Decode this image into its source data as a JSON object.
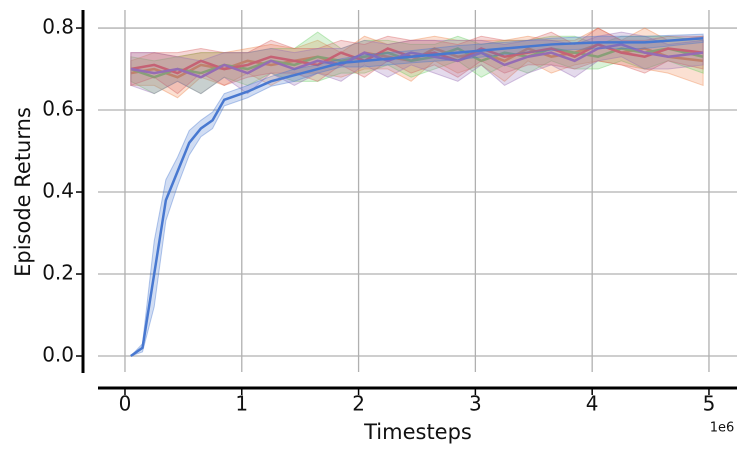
{
  "chart_data": {
    "type": "line",
    "xlabel": "Timesteps",
    "ylabel": "Episode Returns",
    "x_offset_label": "1e6",
    "xlim": [
      -0.231,
      5.24
    ],
    "ylim": [
      -0.039,
      0.844
    ],
    "xticks": [
      0,
      1,
      2,
      3,
      4,
      5
    ],
    "yticks": [
      {
        "value": 0,
        "label": "0.0"
      },
      0.2,
      0.4,
      0.6,
      0.8
    ],
    "grid": true,
    "band_opacity": 0.25,
    "series": [
      {
        "color": "#ee854a",
        "x": [
          0.05,
          0.25,
          0.45,
          0.65,
          0.85,
          1.05,
          1.25,
          1.45,
          1.65,
          1.85,
          2.05,
          2.25,
          2.45,
          2.65,
          2.85,
          3.05,
          3.25,
          3.45,
          3.65,
          3.85,
          4.05,
          4.25,
          4.45,
          4.65,
          4.95
        ],
        "values": [
          0.69,
          0.7,
          0.68,
          0.71,
          0.7,
          0.72,
          0.71,
          0.72,
          0.73,
          0.71,
          0.74,
          0.73,
          0.72,
          0.75,
          0.73,
          0.74,
          0.72,
          0.75,
          0.73,
          0.74,
          0.76,
          0.74,
          0.75,
          0.73,
          0.72
        ],
        "error": [
          0.03,
          0.04,
          0.05,
          0.03,
          0.04,
          0.03,
          0.05,
          0.03,
          0.04,
          0.03,
          0.04,
          0.03,
          0.05,
          0.03,
          0.04,
          0.03,
          0.05,
          0.03,
          0.04,
          0.03,
          0.04,
          0.03,
          0.05,
          0.04,
          0.06
        ]
      },
      {
        "color": "#6acc64",
        "x": [
          0.05,
          0.25,
          0.45,
          0.65,
          0.85,
          1.05,
          1.25,
          1.45,
          1.65,
          1.85,
          2.05,
          2.25,
          2.45,
          2.65,
          2.85,
          3.05,
          3.25,
          3.45,
          3.65,
          3.85,
          4.05,
          4.25,
          4.45,
          4.65,
          4.95
        ],
        "values": [
          0.7,
          0.68,
          0.7,
          0.69,
          0.71,
          0.7,
          0.72,
          0.71,
          0.73,
          0.72,
          0.73,
          0.74,
          0.72,
          0.73,
          0.75,
          0.72,
          0.74,
          0.73,
          0.75,
          0.74,
          0.73,
          0.75,
          0.74,
          0.75,
          0.73
        ],
        "error": [
          0.03,
          0.04,
          0.03,
          0.05,
          0.03,
          0.04,
          0.03,
          0.04,
          0.06,
          0.03,
          0.04,
          0.03,
          0.04,
          0.03,
          0.03,
          0.04,
          0.03,
          0.04,
          0.03,
          0.04,
          0.03,
          0.03,
          0.04,
          0.03,
          0.04
        ]
      },
      {
        "color": "#d65f5f",
        "x": [
          0.05,
          0.25,
          0.45,
          0.65,
          0.85,
          1.05,
          1.25,
          1.45,
          1.65,
          1.85,
          2.05,
          2.25,
          2.45,
          2.65,
          2.85,
          3.05,
          3.25,
          3.45,
          3.65,
          3.85,
          4.05,
          4.25,
          4.45,
          4.65,
          4.95
        ],
        "values": [
          0.7,
          0.71,
          0.69,
          0.72,
          0.7,
          0.71,
          0.73,
          0.72,
          0.71,
          0.74,
          0.72,
          0.75,
          0.73,
          0.74,
          0.72,
          0.75,
          0.73,
          0.74,
          0.75,
          0.73,
          0.76,
          0.74,
          0.73,
          0.75,
          0.74
        ],
        "error": [
          0.04,
          0.03,
          0.05,
          0.03,
          0.04,
          0.03,
          0.04,
          0.03,
          0.04,
          0.03,
          0.04,
          0.03,
          0.04,
          0.03,
          0.04,
          0.03,
          0.04,
          0.03,
          0.04,
          0.03,
          0.04,
          0.03,
          0.04,
          0.03,
          0.04
        ]
      },
      {
        "color": "#956cb4",
        "x": [
          0.05,
          0.25,
          0.45,
          0.65,
          0.85,
          1.05,
          1.25,
          1.45,
          1.65,
          1.85,
          2.05,
          2.25,
          2.45,
          2.65,
          2.85,
          3.05,
          3.25,
          3.45,
          3.65,
          3.85,
          4.05,
          4.25,
          4.45,
          4.65,
          4.95
        ],
        "values": [
          0.7,
          0.69,
          0.7,
          0.68,
          0.71,
          0.69,
          0.72,
          0.7,
          0.72,
          0.71,
          0.74,
          0.72,
          0.74,
          0.73,
          0.72,
          0.74,
          0.71,
          0.73,
          0.74,
          0.72,
          0.75,
          0.76,
          0.74,
          0.73,
          0.74
        ],
        "error": [
          0.04,
          0.05,
          0.03,
          0.04,
          0.03,
          0.05,
          0.03,
          0.04,
          0.03,
          0.04,
          0.03,
          0.04,
          0.03,
          0.04,
          0.05,
          0.03,
          0.05,
          0.04,
          0.03,
          0.04,
          0.03,
          0.03,
          0.04,
          0.03,
          0.03
        ]
      },
      {
        "color": "#4878d0",
        "x": [
          0.05,
          0.15,
          0.25,
          0.35,
          0.45,
          0.55,
          0.65,
          0.75,
          0.85,
          1.05,
          1.25,
          1.45,
          1.65,
          1.85,
          2.05,
          2.45,
          2.85,
          3.25,
          3.65,
          4.05,
          4.45,
          4.95
        ],
        "values": [
          0.0,
          0.02,
          0.2,
          0.38,
          0.45,
          0.52,
          0.555,
          0.575,
          0.625,
          0.645,
          0.67,
          0.685,
          0.7,
          0.715,
          0.72,
          0.73,
          0.74,
          0.75,
          0.76,
          0.765,
          0.765,
          0.775
        ],
        "error": [
          0.0,
          0.01,
          0.08,
          0.05,
          0.035,
          0.03,
          0.02,
          0.02,
          0.015,
          0.015,
          0.012,
          0.015,
          0.01,
          0.01,
          0.015,
          0.015,
          0.017,
          0.015,
          0.015,
          0.015,
          0.015,
          0.01
        ]
      }
    ]
  }
}
